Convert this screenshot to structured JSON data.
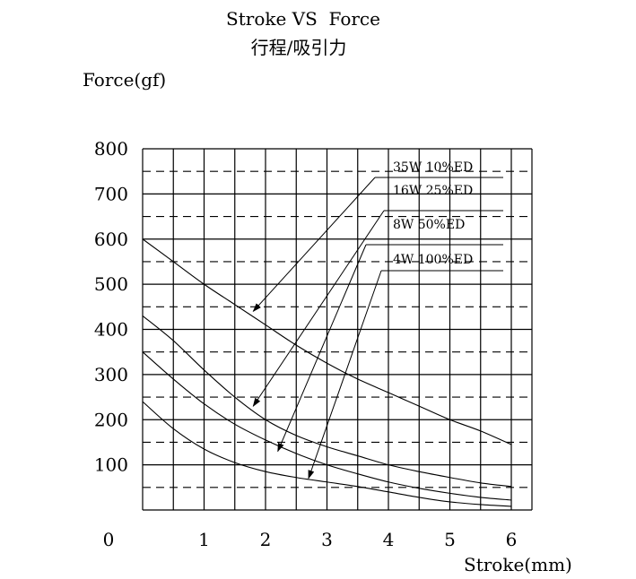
{
  "chart_data": {
    "type": "line",
    "title": "Stroke VS  Force",
    "subtitle": "行程/吸引力",
    "xlabel": "Stroke(mm)",
    "ylabel": "Force(gf)",
    "xlim": [
      0,
      6.2
    ],
    "ylim": [
      0,
      800
    ],
    "origin_label": "0",
    "x_ticks": [
      "1",
      "2",
      "3",
      "4",
      "5",
      "6"
    ],
    "y_ticks": [
      "100",
      "200",
      "300",
      "400",
      "500",
      "600",
      "700",
      "800"
    ],
    "grid": true,
    "series": [
      {
        "name": "35W  10%ED",
        "x": [
          0,
          0.5,
          1,
          1.5,
          2,
          2.5,
          3,
          3.5,
          4,
          4.5,
          5,
          5.5,
          6
        ],
        "y": [
          600,
          550,
          500,
          455,
          410,
          365,
          325,
          290,
          260,
          230,
          200,
          175,
          145
        ],
        "arrow_at": [
          1.8,
          440
        ]
      },
      {
        "name": "16W  25%ED",
        "x": [
          0,
          0.5,
          1,
          1.5,
          2,
          2.5,
          3,
          3.5,
          4,
          4.5,
          5,
          5.5,
          6
        ],
        "y": [
          430,
          375,
          310,
          250,
          200,
          165,
          140,
          120,
          100,
          85,
          72,
          60,
          52
        ],
        "arrow_at": [
          1.8,
          230
        ]
      },
      {
        "name": "8W   50%ED",
        "x": [
          0,
          0.5,
          1,
          1.5,
          2,
          2.5,
          3,
          3.5,
          4,
          4.5,
          5,
          5.5,
          6
        ],
        "y": [
          350,
          290,
          235,
          190,
          155,
          125,
          100,
          80,
          62,
          48,
          37,
          28,
          22
        ],
        "arrow_at": [
          2.2,
          130
        ]
      },
      {
        "name": "4W  100%ED",
        "x": [
          0,
          0.5,
          1,
          1.5,
          2,
          2.5,
          3,
          3.5,
          4,
          4.5,
          5,
          5.5,
          6
        ],
        "y": [
          240,
          180,
          135,
          105,
          85,
          72,
          62,
          52,
          40,
          28,
          18,
          12,
          8
        ],
        "arrow_at": [
          2.7,
          70
        ]
      }
    ]
  }
}
